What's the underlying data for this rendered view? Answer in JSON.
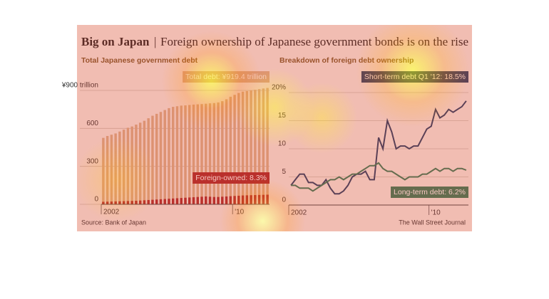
{
  "header": {
    "title": "Big on Japan",
    "subtitle": "Foreign ownership of Japanese government bonds is on the rise"
  },
  "chart_data": [
    {
      "type": "bar",
      "title": "Total Japanese government debt",
      "categories": [
        "2002",
        null,
        null,
        null,
        null,
        null,
        null,
        null,
        null,
        null,
        null,
        null,
        null,
        null,
        null,
        null,
        null,
        null,
        null,
        null,
        null,
        null,
        null,
        null,
        null,
        null,
        null,
        null,
        null,
        null,
        null,
        null,
        "'10",
        null,
        null,
        null,
        null,
        null,
        null,
        null,
        null
      ],
      "series": [
        {
          "name": "Total debt",
          "color": "#d9b48f",
          "values": [
            525,
            540,
            550,
            560,
            575,
            590,
            605,
            615,
            630,
            645,
            660,
            680,
            700,
            715,
            730,
            745,
            760,
            770,
            775,
            780,
            782,
            785,
            788,
            790,
            792,
            795,
            798,
            800,
            805,
            815,
            830,
            850,
            865,
            880,
            890,
            895,
            900,
            905,
            910,
            915,
            919.4
          ]
        },
        {
          "name": "Foreign-owned",
          "color": "#a8282a",
          "values": [
            20,
            21,
            22,
            23,
            24,
            25,
            26,
            27,
            28,
            30,
            32,
            34,
            36,
            38,
            40,
            42,
            44,
            46,
            48,
            50,
            52,
            54,
            56,
            58,
            60,
            62,
            60,
            58,
            58,
            60,
            62,
            64,
            66,
            68,
            70,
            71,
            72,
            73,
            74,
            75,
            76
          ]
        }
      ],
      "annotations": [
        "Total debt: ¥919.4 trillion",
        "Foreign-owned: 8.3%"
      ],
      "ylim": [
        0,
        900
      ],
      "yticks": [
        0,
        300,
        600,
        {
          "value": 900,
          "label": "¥900 trillion"
        }
      ],
      "source": "Source: Bank of Japan"
    },
    {
      "type": "line",
      "title": "Breakdown of foreign debt ownership",
      "categories": [
        "2002",
        null,
        null,
        null,
        null,
        null,
        null,
        null,
        null,
        null,
        null,
        null,
        null,
        null,
        null,
        null,
        null,
        null,
        null,
        null,
        null,
        null,
        null,
        null,
        null,
        null,
        null,
        null,
        null,
        null,
        null,
        null,
        "'10",
        null,
        null,
        null,
        null,
        null,
        null,
        null,
        null
      ],
      "series": [
        {
          "name": "Short-term debt",
          "color": "#1f3f66",
          "values": [
            3.5,
            4.5,
            5.5,
            5.5,
            4,
            4,
            3.5,
            3.5,
            4.5,
            3,
            2,
            2,
            2.5,
            3.5,
            5,
            5.5,
            5.5,
            6,
            4.5,
            4.5,
            12,
            10,
            15,
            13,
            10,
            10.5,
            10.5,
            10,
            10.5,
            10.5,
            12,
            13.5,
            14,
            17,
            15.5,
            16,
            17,
            16.5,
            17,
            17.5,
            18.5
          ]
        },
        {
          "name": "Long-term debt",
          "color": "#2e7d5b",
          "values": [
            3.5,
            3.5,
            3,
            3,
            3,
            2.5,
            3,
            3.5,
            4,
            4.5,
            4.5,
            5,
            4.5,
            5,
            5.5,
            5.5,
            6,
            6.5,
            7,
            7,
            7.5,
            6.5,
            6,
            6,
            5.5,
            5,
            4.5,
            5,
            5,
            5,
            5.5,
            5.5,
            6,
            6.5,
            6,
            6.5,
            6.5,
            6,
            6.5,
            6.5,
            6.2
          ]
        }
      ],
      "annotations": [
        "Short-term debt Q1 '12: 18.5%",
        "Long-term debt: 6.2%"
      ],
      "ylim": [
        0,
        20
      ],
      "yticks": [
        0,
        5,
        10,
        15,
        {
          "value": 20,
          "label": "20%"
        }
      ],
      "source": "The Wall Street Journal"
    }
  ]
}
